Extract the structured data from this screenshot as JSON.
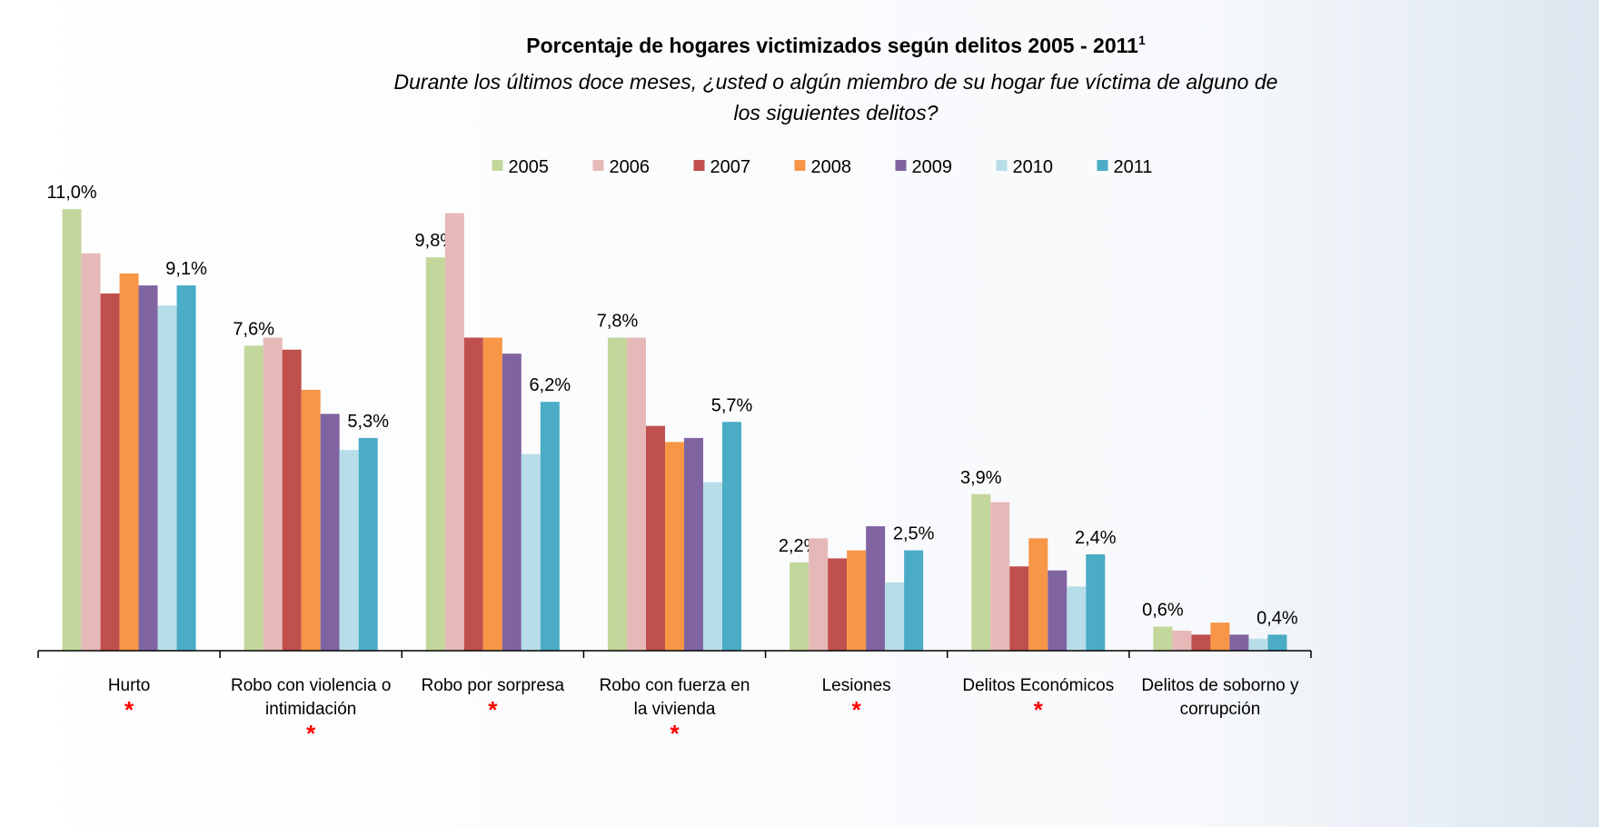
{
  "chart_data": {
    "type": "bar",
    "title": "Porcentaje de hogares victimizados  según delitos 2005 - 2011",
    "title_superscript": "1",
    "subtitle": [
      "Durante los últimos doce meses, ¿usted o algún miembro de su hogar fue víctima de alguno de",
      "los siguientes delitos?"
    ],
    "categories": [
      [
        "Hurto"
      ],
      [
        "Robo con violencia o",
        "intimidación"
      ],
      [
        "Robo por sorpresa"
      ],
      [
        "Robo con fuerza en",
        "la vivienda"
      ],
      [
        "Lesiones"
      ],
      [
        "Delitos Económicos"
      ],
      [
        "Delitos de soborno y",
        "corrupción"
      ]
    ],
    "category_marks": [
      "*",
      "*",
      "*",
      "*",
      "*",
      "*",
      null
    ],
    "ylim": [
      0,
      12
    ],
    "legend": "top",
    "series": [
      {
        "name": "2005",
        "color": "#c3d69b",
        "values": [
          11.0,
          7.6,
          9.8,
          7.8,
          2.2,
          3.9,
          0.6
        ],
        "value_labels": [
          "11,0%",
          "7,6%",
          "9,8%",
          "7,8%",
          "2,2%",
          "3,9%",
          "0,6%"
        ]
      },
      {
        "name": "2006",
        "color": "#e6b9b8",
        "values": [
          9.9,
          7.8,
          10.9,
          7.8,
          2.8,
          3.7,
          0.5
        ]
      },
      {
        "name": "2007",
        "color": "#c0504d",
        "values": [
          8.9,
          7.5,
          7.8,
          5.6,
          2.3,
          2.1,
          0.4
        ]
      },
      {
        "name": "2008",
        "color": "#f79646",
        "values": [
          9.4,
          6.5,
          7.8,
          5.2,
          2.5,
          2.8,
          0.7
        ]
      },
      {
        "name": "2009",
        "color": "#8064a2",
        "values": [
          9.1,
          5.9,
          7.4,
          5.3,
          3.1,
          2.0,
          0.4
        ]
      },
      {
        "name": "2010",
        "color": "#b7dee8",
        "values": [
          8.6,
          5.0,
          4.9,
          4.2,
          1.7,
          1.6,
          0.3
        ]
      },
      {
        "name": "2011",
        "color": "#4bacc6",
        "values": [
          9.1,
          5.3,
          6.2,
          5.7,
          2.5,
          2.4,
          0.4
        ],
        "value_labels": [
          "9,1%",
          "5,3%",
          "6,2%",
          "5,7%",
          "2,5%",
          "2,4%",
          "0,4%"
        ]
      }
    ]
  }
}
